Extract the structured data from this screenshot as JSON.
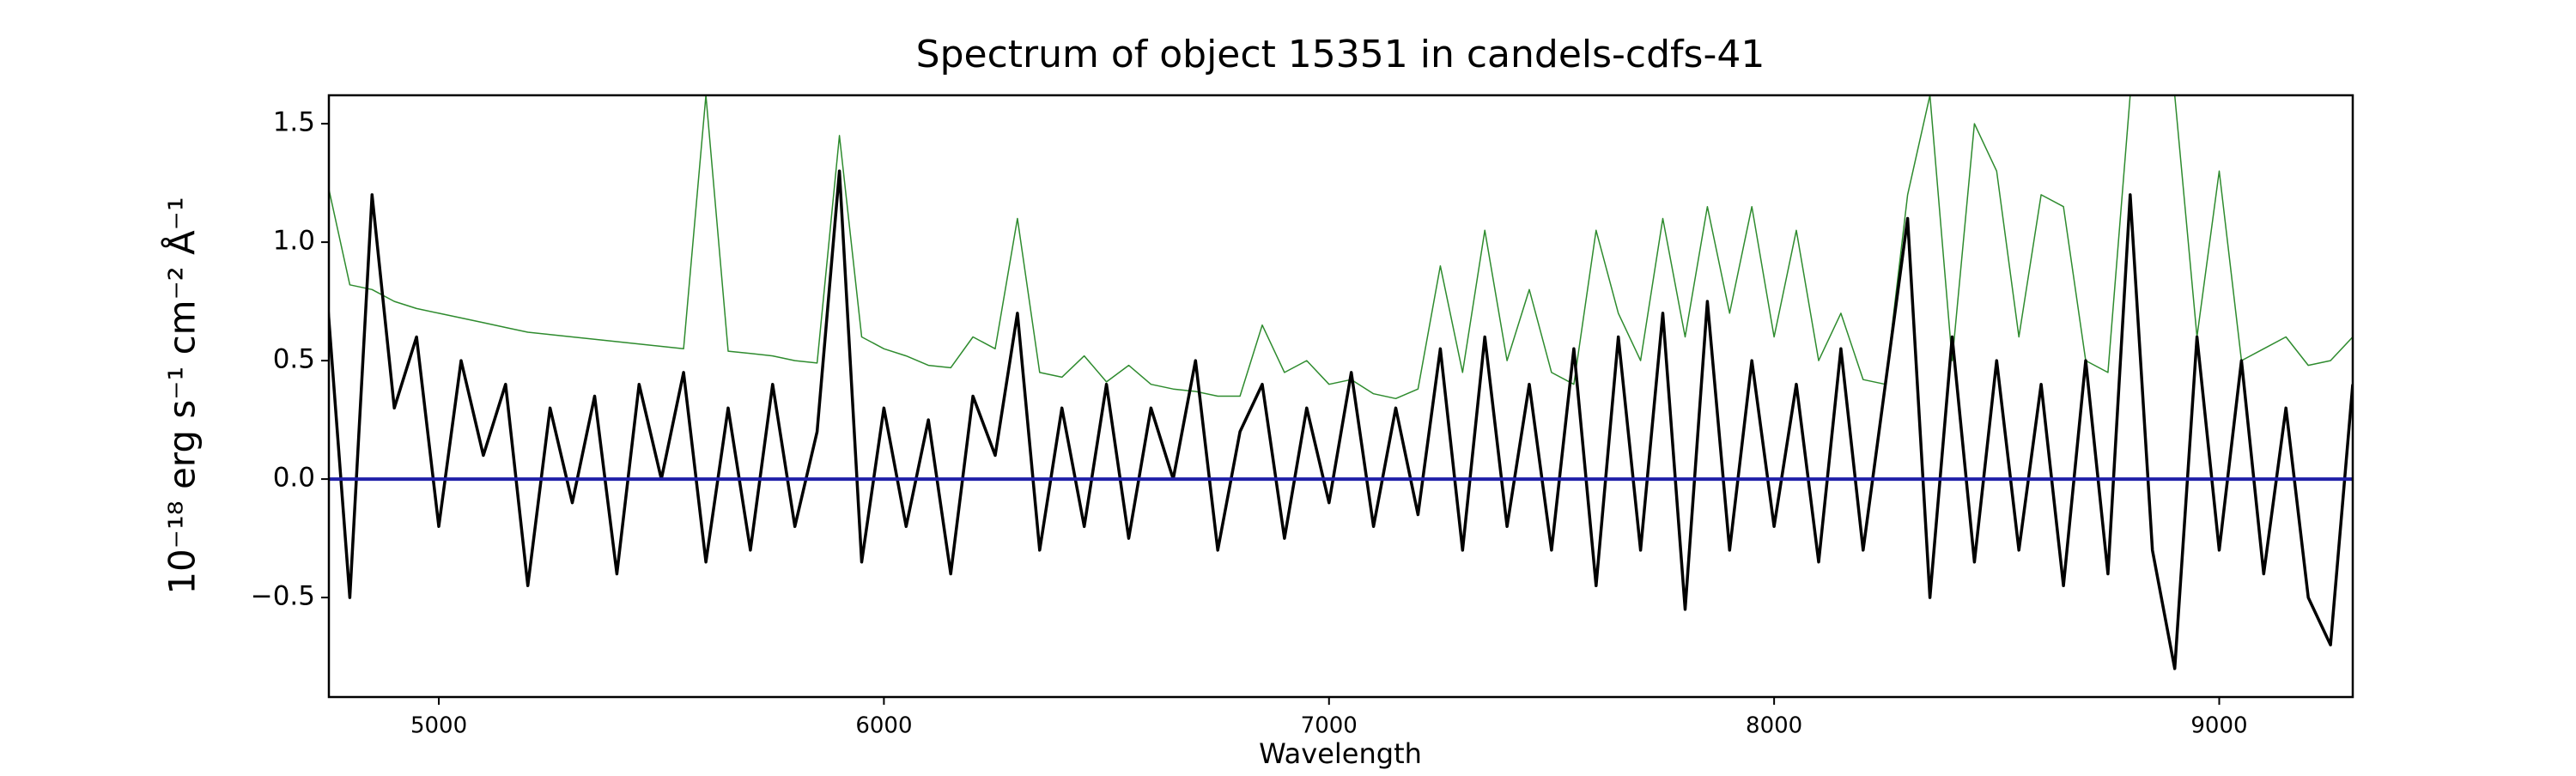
{
  "chart_data": {
    "type": "line",
    "title": "Spectrum of object 15351 in candels-cdfs-41",
    "x_label": "Wavelength",
    "y_label": "10⁻¹⁸ erg s⁻¹ cm⁻² Å⁻¹",
    "xlim": [
      4753,
      9300
    ],
    "ylim": [
      -0.92,
      1.62
    ],
    "xticks": [
      5000,
      6000,
      7000,
      8000,
      9000
    ],
    "yticks": [
      {
        "value": -0.5,
        "label": "−0.5"
      },
      {
        "value": 0,
        "label": "0.0"
      },
      0.5,
      {
        "value": 1,
        "label": "1.0"
      },
      1.5
    ],
    "x": [
      4750,
      4800,
      4850,
      4900,
      4950,
      5000,
      5050,
      5100,
      5150,
      5200,
      5250,
      5300,
      5350,
      5400,
      5450,
      5500,
      5550,
      5600,
      5650,
      5700,
      5750,
      5800,
      5850,
      5900,
      5950,
      6000,
      6050,
      6100,
      6150,
      6200,
      6250,
      6300,
      6350,
      6400,
      6450,
      6500,
      6550,
      6600,
      6650,
      6700,
      6750,
      6800,
      6850,
      6900,
      6950,
      7000,
      7050,
      7100,
      7150,
      7200,
      7250,
      7300,
      7350,
      7400,
      7450,
      7500,
      7550,
      7600,
      7650,
      7700,
      7750,
      7800,
      7850,
      7900,
      7950,
      8000,
      8050,
      8100,
      8150,
      8200,
      8250,
      8300,
      8350,
      8400,
      8450,
      8500,
      8550,
      8600,
      8650,
      8700,
      8750,
      8800,
      8850,
      8900,
      8950,
      9000,
      9050,
      9100,
      9150,
      9200,
      9250,
      9300
    ],
    "series": [
      {
        "color": "#2e8b2e",
        "width": 1.5,
        "values": [
          1.25,
          0.82,
          0.8,
          0.75,
          0.72,
          0.7,
          0.68,
          0.66,
          0.64,
          0.62,
          0.61,
          0.6,
          0.59,
          0.58,
          0.57,
          0.56,
          0.55,
          1.62,
          0.54,
          0.53,
          0.52,
          0.5,
          0.49,
          1.45,
          0.6,
          0.55,
          0.52,
          0.48,
          0.47,
          0.6,
          0.55,
          1.1,
          0.45,
          0.43,
          0.52,
          0.41,
          0.48,
          0.4,
          0.38,
          0.37,
          0.35,
          0.35,
          0.65,
          0.45,
          0.5,
          0.4,
          0.42,
          0.36,
          0.34,
          0.38,
          0.9,
          0.45,
          1.05,
          0.5,
          0.8,
          0.45,
          0.4,
          1.05,
          0.7,
          0.5,
          1.1,
          0.6,
          1.15,
          0.7,
          1.15,
          0.6,
          1.05,
          0.5,
          0.7,
          0.42,
          0.4,
          1.2,
          1.62,
          0.5,
          1.5,
          1.3,
          0.6,
          1.2,
          1.15,
          0.5,
          0.45,
          1.62,
          1.62,
          1.62,
          0.6,
          1.3,
          0.5,
          0.55,
          0.6,
          0.48,
          0.5,
          0.6
        ]
      },
      {
        "color": "#000000",
        "width": 3.5,
        "values": [
          0.75,
          -0.5,
          1.2,
          0.3,
          0.6,
          -0.2,
          0.5,
          0.1,
          0.4,
          -0.45,
          0.3,
          -0.1,
          0.35,
          -0.4,
          0.4,
          0,
          0.45,
          -0.35,
          0.3,
          -0.3,
          0.4,
          -0.2,
          0.2,
          1.3,
          -0.35,
          0.3,
          -0.2,
          0.25,
          -0.4,
          0.35,
          0.1,
          0.7,
          -0.3,
          0.3,
          -0.2,
          0.4,
          -0.25,
          0.3,
          0,
          0.5,
          -0.3,
          0.2,
          0.4,
          -0.25,
          0.3,
          -0.1,
          0.45,
          -0.2,
          0.3,
          -0.15,
          0.55,
          -0.3,
          0.6,
          -0.2,
          0.4,
          -0.3,
          0.55,
          -0.45,
          0.6,
          -0.3,
          0.7,
          -0.55,
          0.75,
          -0.3,
          0.5,
          -0.2,
          0.4,
          -0.35,
          0.55,
          -0.3,
          0.4,
          1.1,
          -0.5,
          0.6,
          -0.35,
          0.5,
          -0.3,
          0.4,
          -0.45,
          0.5,
          -0.4,
          1.2,
          -0.3,
          -0.8,
          0.6,
          -0.3,
          0.5,
          -0.4,
          0.3,
          -0.5,
          -0.7,
          0.4
        ]
      },
      {
        "color": "#1f1fa8",
        "width": 4,
        "x": [
          4750,
          9300
        ],
        "values": [
          0,
          0
        ]
      }
    ]
  }
}
